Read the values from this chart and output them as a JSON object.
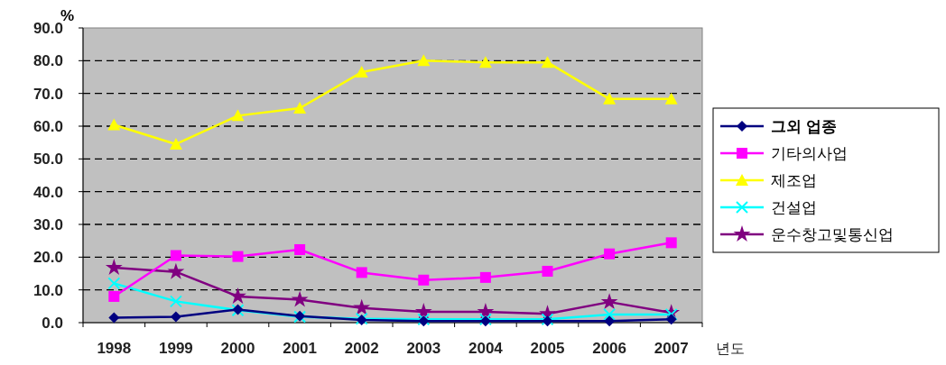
{
  "chart_data": {
    "type": "line",
    "xlabel": "년도",
    "ylabel": "%",
    "categories": [
      "1998",
      "1999",
      "2000",
      "2001",
      "2002",
      "2003",
      "2004",
      "2005",
      "2006",
      "2007"
    ],
    "ylim": [
      0,
      90
    ],
    "yticks": [
      {
        "value": 0,
        "label": "0.0"
      },
      {
        "value": 10,
        "label": "10.0"
      },
      {
        "value": 20,
        "label": "20.0"
      },
      {
        "value": 30,
        "label": "30.0"
      },
      {
        "value": 40,
        "label": "40.0"
      },
      {
        "value": 50,
        "label": "50.0"
      },
      {
        "value": 60,
        "label": "60.0"
      },
      {
        "value": 70,
        "label": "70.0"
      },
      {
        "value": 80,
        "label": "80.0"
      },
      {
        "value": 90,
        "label": "90.0"
      }
    ],
    "grid": "y",
    "legend": "right",
    "series": [
      {
        "name": "그외 업종",
        "color": "#000080",
        "marker": "diamond",
        "values": [
          1.5,
          1.8,
          4,
          2,
          0.8,
          0.5,
          0.5,
          0.5,
          0.5,
          1
        ]
      },
      {
        "name": "기타의사업",
        "color": "#ff00ff",
        "marker": "square",
        "values": [
          8,
          20.5,
          20.2,
          22.3,
          15.3,
          13,
          13.8,
          15.7,
          21,
          24.4
        ]
      },
      {
        "name": "제조업",
        "color": "#ffff00",
        "marker": "triangle",
        "values": [
          60.4,
          54.5,
          63.2,
          65.5,
          76.5,
          80,
          79.5,
          79.5,
          68.3,
          68.3
        ]
      },
      {
        "name": "건설업",
        "color": "#00ffff",
        "marker": "cross",
        "values": [
          12,
          6.5,
          3.8,
          1.8,
          1.2,
          1,
          1,
          1,
          2.5,
          2.5
        ]
      },
      {
        "name": "운수창고및통신업",
        "color": "#800080",
        "marker": "star",
        "values": [
          16.8,
          15.5,
          8,
          7,
          4.5,
          3.3,
          3.3,
          2.7,
          6.3,
          3
        ]
      }
    ]
  }
}
